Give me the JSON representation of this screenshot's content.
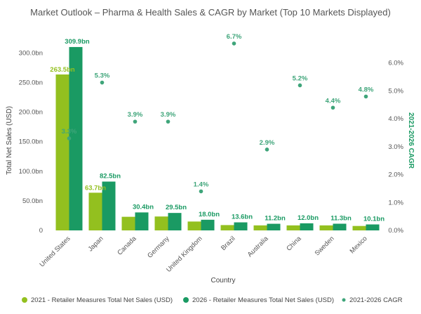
{
  "chart_data": {
    "type": "bar",
    "title": "Market Outlook – Pharma & Health Sales & CAGR by Market (Top 10 Markets Displayed)",
    "xlabel": "Country",
    "ylabel": "Total Net Sales (USD)",
    "y2label": "2021-2026 CAGR",
    "categories": [
      "United States",
      "Japan",
      "Canada",
      "Germany",
      "United Kingdom",
      "Brazil",
      "Australia",
      "China",
      "Sweden",
      "Mexico"
    ],
    "ylim": [
      0,
      330
    ],
    "y2lim": [
      0,
      7.0
    ],
    "yticks": [
      "0",
      "50.0bn",
      "100.0bn",
      "150.0bn",
      "200.0bn",
      "250.0bn",
      "300.0bn"
    ],
    "y2ticks": [
      "0.0%",
      "1.0%",
      "2.0%",
      "3.0%",
      "4.0%",
      "5.0%",
      "6.0%"
    ],
    "series": [
      {
        "name": "2021 - Retailer Measures Total Net Sales (USD)",
        "kind": "bar",
        "color": "#93c01f",
        "values": [
          263.5,
          63.7,
          23.0,
          23.5,
          15.0,
          9.0,
          8.5,
          8.5,
          8.5,
          7.5
        ],
        "labels": [
          "263.5bn",
          "63.7bn",
          "",
          "",
          "",
          "",
          "",
          "",
          "",
          ""
        ]
      },
      {
        "name": "2026 - Retailer Measures Total Net Sales (USD)",
        "kind": "bar",
        "color": "#1a9a63",
        "values": [
          309.9,
          82.5,
          30.4,
          29.5,
          18.0,
          13.6,
          11.2,
          12.0,
          11.3,
          10.1
        ],
        "labels": [
          "309.9bn",
          "82.5bn",
          "30.4bn",
          "29.5bn",
          "18.0bn",
          "13.6bn",
          "11.2bn",
          "12.0bn",
          "11.3bn",
          "10.1bn"
        ]
      },
      {
        "name": "2021-2026 CAGR",
        "kind": "scatter",
        "axis": "right",
        "color": "#3fa57a",
        "values": [
          3.3,
          5.3,
          3.9,
          3.9,
          1.4,
          6.7,
          2.9,
          5.2,
          4.4,
          4.8
        ],
        "labels": [
          "3.3%",
          "5.3%",
          "3.9%",
          "3.9%",
          "1.4%",
          "6.7%",
          "2.9%",
          "5.2%",
          "4.4%",
          "4.8%"
        ]
      }
    ],
    "grid": false,
    "legend_position": "bottom"
  }
}
